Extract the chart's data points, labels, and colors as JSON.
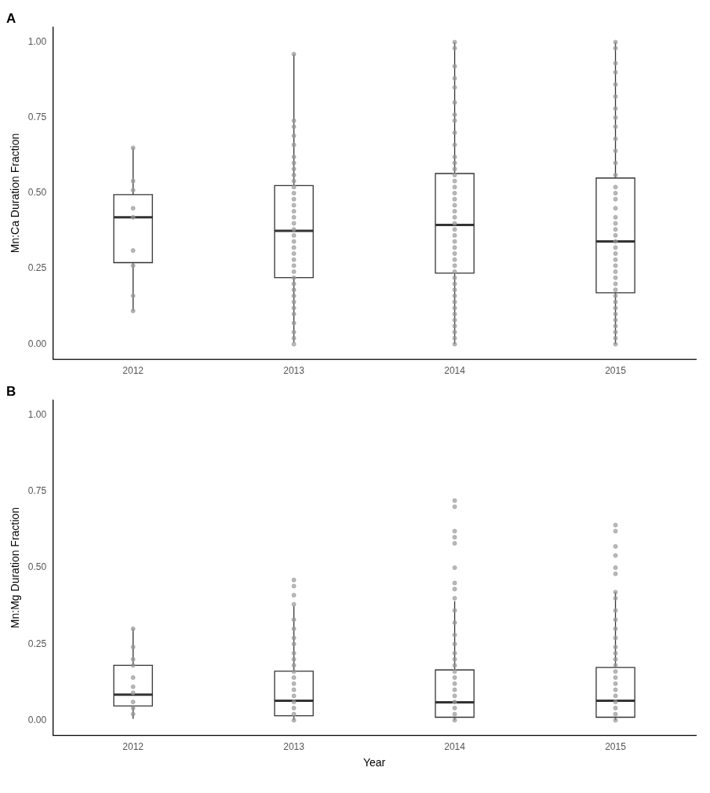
{
  "chart_data": [
    {
      "type": "box",
      "title": "A",
      "ylabel": "Mn:Ca Duration Fraction",
      "x": [
        2012,
        2013,
        2014,
        2015
      ],
      "xlim": [
        2011.5,
        2015.5
      ],
      "xticks": [
        2012,
        2013,
        2014,
        2015
      ],
      "ylim": [
        -0.05,
        1.05
      ],
      "yticks": [
        {
          "value": 0,
          "label": "0.00"
        },
        {
          "value": 0.25,
          "label": "0.25"
        },
        {
          "value": 0.5,
          "label": "0.50"
        },
        {
          "value": 0.75,
          "label": "0.75"
        },
        {
          "value": 1,
          "label": "1.00"
        }
      ],
      "grid": false,
      "legend": false,
      "color": "#333333",
      "boxes": [
        {
          "low": 0.11,
          "q1": 0.27,
          "median": 0.42,
          "q3": 0.495,
          "high": 0.65
        },
        {
          "low": 0.005,
          "q1": 0.22,
          "median": 0.375,
          "q3": 0.525,
          "high": 0.96
        },
        {
          "low": 0,
          "q1": 0.235,
          "median": 0.395,
          "q3": 0.565,
          "high": 1
        },
        {
          "low": 0,
          "q1": 0.17,
          "median": 0.34,
          "q3": 0.55,
          "high": 1
        }
      ],
      "series": [
        {
          "type": "scatter",
          "color": "#999999",
          "x": [
            2012,
            2012,
            2012,
            2012,
            2012,
            2012,
            2012,
            2012,
            2012,
            2013,
            2013,
            2013,
            2013,
            2013,
            2013,
            2013,
            2013,
            2013,
            2013,
            2013,
            2013,
            2013,
            2013,
            2013,
            2013,
            2013,
            2013,
            2013,
            2013,
            2013,
            2013,
            2013,
            2013,
            2013,
            2013,
            2013,
            2013,
            2013,
            2013,
            2013,
            2013,
            2013,
            2013,
            2013,
            2013,
            2014,
            2014,
            2014,
            2014,
            2014,
            2014,
            2014,
            2014,
            2014,
            2014,
            2014,
            2014,
            2014,
            2014,
            2014,
            2014,
            2014,
            2014,
            2014,
            2014,
            2014,
            2014,
            2014,
            2014,
            2014,
            2014,
            2014,
            2014,
            2014,
            2014,
            2014,
            2014,
            2014,
            2014,
            2014,
            2014,
            2014,
            2014,
            2014,
            2014,
            2014,
            2014,
            2015,
            2015,
            2015,
            2015,
            2015,
            2015,
            2015,
            2015,
            2015,
            2015,
            2015,
            2015,
            2015,
            2015,
            2015,
            2015,
            2015,
            2015,
            2015,
            2015,
            2015,
            2015,
            2015,
            2015,
            2015,
            2015,
            2015,
            2015,
            2015,
            2015,
            2015,
            2015,
            2015,
            2015,
            2015,
            2015,
            2015,
            2015,
            2015
          ],
          "values": [
            0.65,
            0.54,
            0.51,
            0.45,
            0.42,
            0.31,
            0.26,
            0.16,
            0.11,
            0.96,
            0.74,
            0.72,
            0.69,
            0.66,
            0.62,
            0.6,
            0.58,
            0.56,
            0.54,
            0.52,
            0.5,
            0.48,
            0.46,
            0.44,
            0.42,
            0.4,
            0.38,
            0.36,
            0.34,
            0.32,
            0.3,
            0.28,
            0.26,
            0.24,
            0.22,
            0.2,
            0.18,
            0.16,
            0.14,
            0.12,
            0.1,
            0.07,
            0.04,
            0.02,
            0,
            1,
            0.98,
            0.92,
            0.88,
            0.85,
            0.8,
            0.76,
            0.74,
            0.7,
            0.66,
            0.62,
            0.6,
            0.58,
            0.56,
            0.54,
            0.52,
            0.5,
            0.48,
            0.46,
            0.44,
            0.42,
            0.4,
            0.38,
            0.36,
            0.34,
            0.32,
            0.3,
            0.28,
            0.26,
            0.24,
            0.22,
            0.2,
            0.18,
            0.16,
            0.14,
            0.12,
            0.1,
            0.08,
            0.06,
            0.04,
            0.02,
            0,
            1,
            0.98,
            0.93,
            0.9,
            0.86,
            0.82,
            0.78,
            0.75,
            0.72,
            0.68,
            0.64,
            0.6,
            0.56,
            0.52,
            0.5,
            0.48,
            0.45,
            0.42,
            0.4,
            0.38,
            0.36,
            0.34,
            0.32,
            0.3,
            0.28,
            0.26,
            0.24,
            0.22,
            0.2,
            0.18,
            0.16,
            0.14,
            0.12,
            0.1,
            0.08,
            0.06,
            0.04,
            0.02,
            0
          ]
        }
      ]
    },
    {
      "type": "box",
      "title": "B",
      "ylabel": "Mn:Mg Duration Fraction",
      "xlabel": "Year",
      "x": [
        2012,
        2013,
        2014,
        2015
      ],
      "xlim": [
        2011.5,
        2015.5
      ],
      "xticks": [
        2012,
        2013,
        2014,
        2015
      ],
      "ylim": [
        -0.05,
        1.05
      ],
      "yticks": [
        {
          "value": 0,
          "label": "0.00"
        },
        {
          "value": 0.25,
          "label": "0.25"
        },
        {
          "value": 0.5,
          "label": "0.50"
        },
        {
          "value": 0.75,
          "label": "0.75"
        },
        {
          "value": 1,
          "label": "1.00"
        }
      ],
      "grid": false,
      "legend": false,
      "color": "#333333",
      "boxes": [
        {
          "low": 0.005,
          "q1": 0.047,
          "median": 0.084,
          "q3": 0.18,
          "high": 0.3
        },
        {
          "low": 0,
          "q1": 0.015,
          "median": 0.064,
          "q3": 0.161,
          "high": 0.375
        },
        {
          "low": 0,
          "q1": 0.01,
          "median": 0.059,
          "q3": 0.165,
          "high": 0.39
        },
        {
          "low": 0,
          "q1": 0.01,
          "median": 0.064,
          "q3": 0.173,
          "high": 0.42
        }
      ],
      "series": [
        {
          "type": "scatter",
          "color": "#999999",
          "x": [
            2012,
            2012,
            2012,
            2012,
            2012,
            2012,
            2012,
            2012,
            2012,
            2012,
            2013,
            2013,
            2013,
            2013,
            2013,
            2013,
            2013,
            2013,
            2013,
            2013,
            2013,
            2013,
            2013,
            2013,
            2013,
            2013,
            2013,
            2013,
            2013,
            2013,
            2014,
            2014,
            2014,
            2014,
            2014,
            2014,
            2014,
            2014,
            2014,
            2014,
            2014,
            2014,
            2014,
            2014,
            2014,
            2014,
            2014,
            2014,
            2014,
            2014,
            2014,
            2014,
            2014,
            2014,
            2014,
            2015,
            2015,
            2015,
            2015,
            2015,
            2015,
            2015,
            2015,
            2015,
            2015,
            2015,
            2015,
            2015,
            2015,
            2015,
            2015,
            2015,
            2015,
            2015,
            2015,
            2015,
            2015,
            2015,
            2015,
            2015
          ],
          "values": [
            0.3,
            0.24,
            0.2,
            0.18,
            0.14,
            0.11,
            0.09,
            0.06,
            0.04,
            0.02,
            0.46,
            0.44,
            0.41,
            0.38,
            0.33,
            0.3,
            0.27,
            0.25,
            0.22,
            0.2,
            0.18,
            0.16,
            0.14,
            0.12,
            0.1,
            0.08,
            0.06,
            0.04,
            0.02,
            0,
            0.72,
            0.7,
            0.62,
            0.6,
            0.58,
            0.5,
            0.45,
            0.43,
            0.4,
            0.36,
            0.32,
            0.28,
            0.25,
            0.22,
            0.2,
            0.18,
            0.16,
            0.14,
            0.12,
            0.1,
            0.08,
            0.06,
            0.04,
            0.02,
            0,
            0.64,
            0.62,
            0.57,
            0.54,
            0.5,
            0.48,
            0.42,
            0.4,
            0.36,
            0.33,
            0.3,
            0.27,
            0.24,
            0.22,
            0.2,
            0.18,
            0.16,
            0.14,
            0.12,
            0.1,
            0.08,
            0.06,
            0.04,
            0.02,
            0
          ]
        }
      ]
    }
  ]
}
